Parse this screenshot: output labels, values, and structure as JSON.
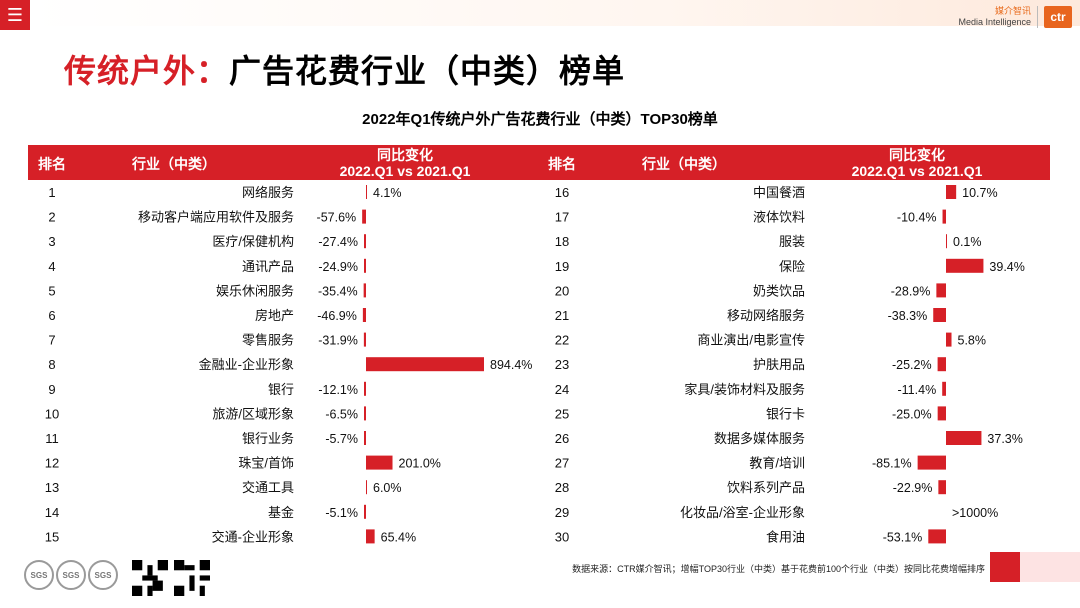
{
  "topbar": {
    "menu_icon": "menu-icon",
    "brand_cn": "媒介智讯",
    "brand_en": "Media Intelligence",
    "brand_logo": "ctr"
  },
  "page_title": {
    "red": "传统户外：",
    "black": "广告花费行业（中类）榜单"
  },
  "table_header": {
    "rank": "排名",
    "industry": "行业（中类）",
    "change_line1": "同比变化",
    "change_line2": "2022.Q1 vs 2021.Q1"
  },
  "footer": {
    "note": "数据来源：CTR媒介智讯；增幅TOP30行业（中类）基于花费前100个行业（中类）按同比花费增幅排序"
  },
  "colors": {
    "accent": "#d62027",
    "header_text": "#ffffff"
  },
  "chart_data": {
    "type": "bar",
    "title": "2022年Q1传统户外广告花费行业（中类）TOP30榜单",
    "xlabel": "同比变化 2022.Q1 vs 2021.Q1",
    "unit": "%",
    "left": [
      {
        "rank": "1",
        "industry": "网络服务",
        "value": 4.1,
        "label": "4.1%"
      },
      {
        "rank": "2",
        "industry": "移动客户端应用软件及服务",
        "value": -57.6,
        "label": "-57.6%"
      },
      {
        "rank": "3",
        "industry": "医疗/保健机构",
        "value": -27.4,
        "label": "-27.4%"
      },
      {
        "rank": "4",
        "industry": "通讯产品",
        "value": -24.9,
        "label": "-24.9%"
      },
      {
        "rank": "5",
        "industry": "娱乐休闲服务",
        "value": -35.4,
        "label": "-35.4%"
      },
      {
        "rank": "6",
        "industry": "房地产",
        "value": -46.9,
        "label": "-46.9%"
      },
      {
        "rank": "7",
        "industry": "零售服务",
        "value": -31.9,
        "label": "-31.9%"
      },
      {
        "rank": "8",
        "industry": "金融业-企业形象",
        "value": 894.4,
        "label": "894.4%"
      },
      {
        "rank": "9",
        "industry": "银行",
        "value": -12.1,
        "label": "-12.1%"
      },
      {
        "rank": "10",
        "industry": "旅游/区域形象",
        "value": -6.5,
        "label": "-6.5%"
      },
      {
        "rank": "11",
        "industry": "银行业务",
        "value": -5.7,
        "label": "-5.7%"
      },
      {
        "rank": "12",
        "industry": "珠宝/首饰",
        "value": 201.0,
        "label": "201.0%"
      },
      {
        "rank": "13",
        "industry": "交通工具",
        "value": 6.0,
        "label": "6.0%"
      },
      {
        "rank": "14",
        "industry": "基金",
        "value": -5.1,
        "label": "-5.1%"
      },
      {
        "rank": "15",
        "industry": "交通-企业形象",
        "value": 65.4,
        "label": "65.4%"
      }
    ],
    "right": [
      {
        "rank": "16",
        "industry": "中国餐酒",
        "value": 10.7,
        "label": "10.7%"
      },
      {
        "rank": "17",
        "industry": "液体饮料",
        "value": -10.4,
        "label": "-10.4%"
      },
      {
        "rank": "18",
        "industry": "服装",
        "value": 0.1,
        "label": "0.1%"
      },
      {
        "rank": "19",
        "industry": "保险",
        "value": 39.4,
        "label": "39.4%"
      },
      {
        "rank": "20",
        "industry": "奶类饮品",
        "value": -28.9,
        "label": "-28.9%"
      },
      {
        "rank": "21",
        "industry": "移动网络服务",
        "value": -38.3,
        "label": "-38.3%"
      },
      {
        "rank": "22",
        "industry": "商业演出/电影宣传",
        "value": 5.8,
        "label": "5.8%"
      },
      {
        "rank": "23",
        "industry": "护肤用品",
        "value": -25.2,
        "label": "-25.2%"
      },
      {
        "rank": "24",
        "industry": "家具/装饰材料及服务",
        "value": -11.4,
        "label": "-11.4%"
      },
      {
        "rank": "25",
        "industry": "银行卡",
        "value": -25.0,
        "label": "-25.0%"
      },
      {
        "rank": "26",
        "industry": "数据多媒体服务",
        "value": 37.3,
        "label": "37.3%"
      },
      {
        "rank": "27",
        "industry": "教育/培训",
        "value": -85.1,
        "label": "-85.1%"
      },
      {
        "rank": "28",
        "industry": "饮料系列产品",
        "value": -22.9,
        "label": "-22.9%"
      },
      {
        "rank": "29",
        "industry": "化妆品/浴室-企业形象",
        "value": null,
        "label": ">1000%"
      },
      {
        "rank": "30",
        "industry": "食用油",
        "value": -53.1,
        "label": "-53.1%"
      }
    ]
  }
}
